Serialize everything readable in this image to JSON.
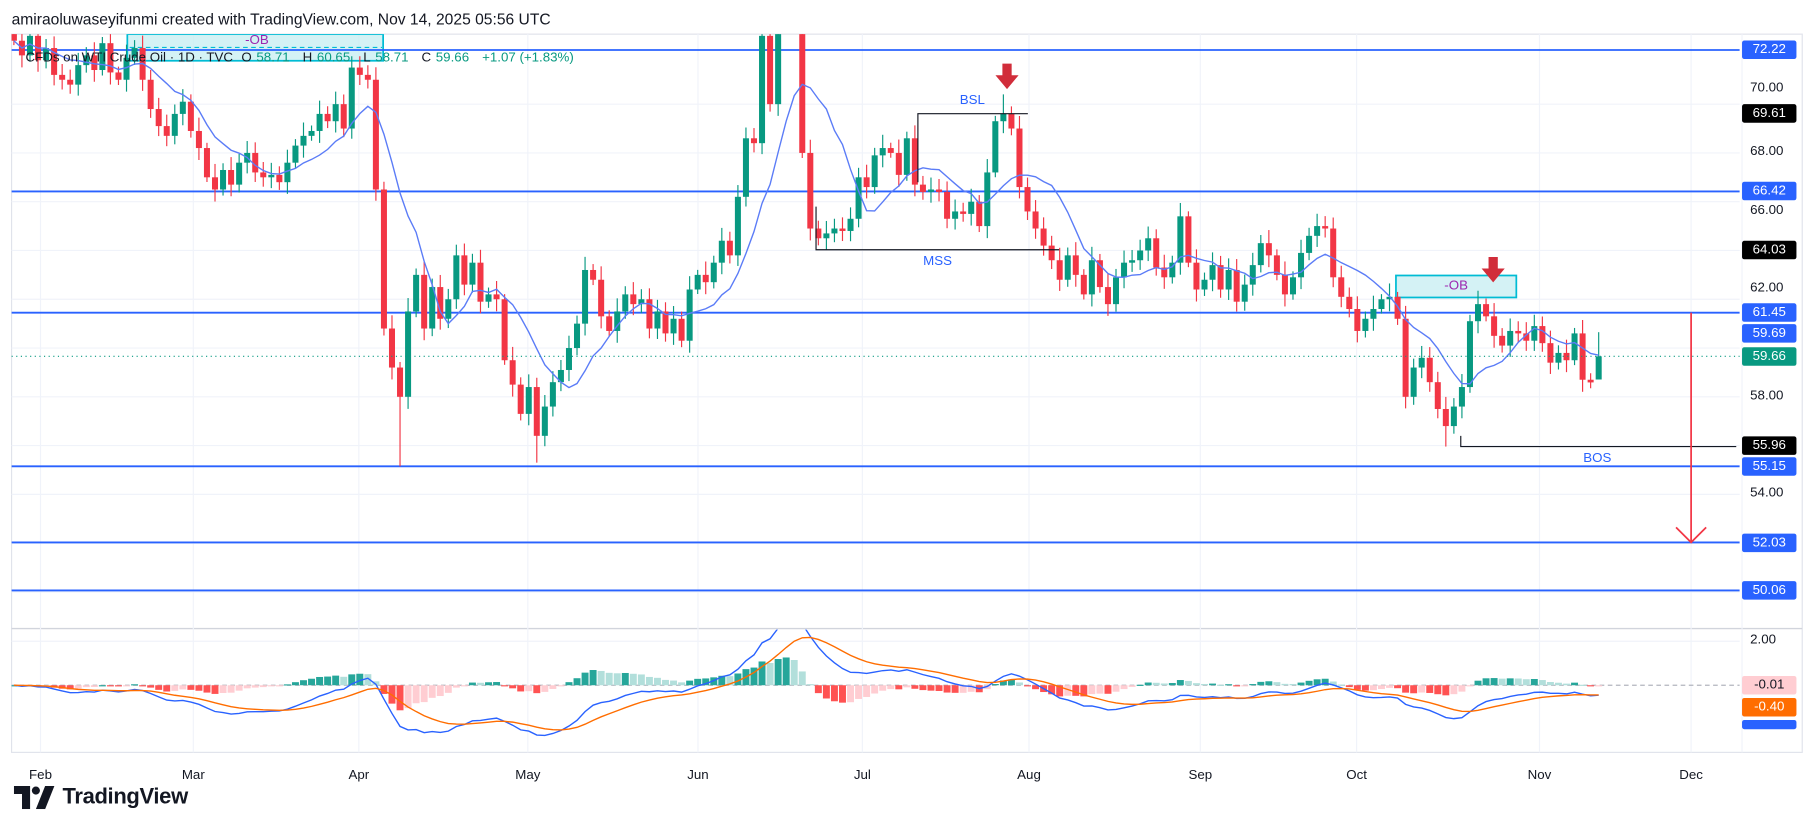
{
  "header": {
    "attribution": "amiraoluwaseyifunmi created with TradingView.com, Nov 14, 2025 05:56 UTC"
  },
  "legend": {
    "symbol": "CFDs on WTI Crude Oil · 1D · TVC",
    "o_label": "O",
    "o": "58.71",
    "h_label": "H",
    "h": "60.65",
    "l_label": "L",
    "l": "58.71",
    "c_label": "C",
    "c": "59.66",
    "change": "+1.07 (+1.83%)"
  },
  "price_axis": {
    "ticks": [
      "70.00",
      "68.00",
      "66.00",
      "62.00",
      "58.00",
      "54.00"
    ],
    "labels": [
      {
        "text": "72.22",
        "kind": "level"
      },
      {
        "text": "69.61",
        "kind": "marker"
      },
      {
        "text": "66.42",
        "kind": "level"
      },
      {
        "text": "64.03",
        "kind": "marker"
      },
      {
        "text": "61.45",
        "kind": "level"
      },
      {
        "text": "59.69",
        "kind": "sma"
      },
      {
        "text": "59.66",
        "kind": "last"
      },
      {
        "text": "55.96",
        "kind": "marker"
      },
      {
        "text": "55.15",
        "kind": "level"
      },
      {
        "text": "52.03",
        "kind": "level"
      },
      {
        "text": "50.06",
        "kind": "level"
      }
    ]
  },
  "macd_axis": {
    "ticks": [
      "2.00"
    ],
    "labels": [
      {
        "text": "-0.01",
        "kind": "histogram"
      },
      {
        "text": "-0.40",
        "kind": "signal"
      }
    ]
  },
  "time_axis": {
    "months": [
      "Feb",
      "Mar",
      "Apr",
      "May",
      "Jun",
      "Jul",
      "Aug",
      "Sep",
      "Oct",
      "Nov",
      "Dec"
    ]
  },
  "annotations": {
    "ob_top": "-OB",
    "ob_right": "-OB",
    "bsl": "BSL",
    "mss": "MSS",
    "bos": "BOS"
  },
  "logo": {
    "text": "TradingView"
  },
  "colors": {
    "up": "#089981",
    "down": "#f23645",
    "level": "#2962ff",
    "sma": "#5b7cf7",
    "macd": "#2962ff",
    "signal": "#ff6d00",
    "ob_fill": "#c9eff3",
    "ob_border": "#00bcd4",
    "ob_text": "#9c27b0",
    "arrow": "#f23645"
  },
  "chart_data": {
    "type": "candlestick",
    "symbol": "CFDs on WTI Crude Oil",
    "interval": "1D",
    "y_range": [
      49.0,
      72.9
    ],
    "levels": [
      72.22,
      66.42,
      61.45,
      55.15,
      52.03,
      50.06
    ],
    "markers": {
      "bsl": 69.61,
      "mss": 64.03,
      "bos": 55.96
    },
    "last_candle": {
      "open": 58.71,
      "high": 60.65,
      "low": 58.71,
      "close": 59.66
    },
    "indicators": [
      "SMA",
      "MACD"
    ],
    "closes": [
      72.6,
      72.0,
      72.8,
      71.8,
      72.3,
      71.2,
      71.0,
      70.8,
      71.6,
      72.0,
      71.4,
      72.5,
      71.3,
      71.0,
      71.9,
      72.3,
      71.0,
      69.8,
      69.1,
      68.7,
      69.6,
      70.1,
      68.9,
      68.2,
      67.0,
      66.5,
      67.3,
      66.7,
      67.6,
      68.0,
      67.2,
      67.0,
      67.1,
      66.8,
      67.6,
      68.3,
      68.7,
      68.9,
      69.6,
      69.3,
      70.0,
      69.0,
      71.5,
      71.2,
      71.0,
      66.5,
      60.8,
      59.2,
      58.0,
      61.5,
      63.0,
      60.8,
      62.5,
      61.2,
      62.0,
      63.8,
      62.6,
      63.5,
      61.9,
      62.2,
      62.0,
      59.5,
      58.5,
      57.3,
      58.4,
      56.4,
      57.6,
      58.6,
      59.1,
      60.0,
      61.0,
      63.2,
      62.8,
      61.3,
      60.7,
      61.5,
      62.2,
      61.8,
      62.0,
      60.8,
      61.5,
      60.6,
      61.2,
      60.3,
      62.4,
      63.0,
      62.7,
      63.5,
      64.4,
      63.8,
      66.2,
      68.6,
      68.4,
      72.8,
      70.0,
      74.5,
      75.0,
      73.8,
      68.0,
      64.9,
      64.5,
      64.7,
      64.9,
      64.8,
      65.3,
      67.0,
      66.6,
      67.9,
      68.2,
      68.0,
      67.1,
      68.6,
      66.7,
      66.4,
      66.5,
      66.4,
      65.3,
      65.6,
      65.5,
      66.0,
      65.0,
      67.2,
      69.3,
      69.6,
      69.0,
      66.6,
      65.6,
      64.9,
      64.2,
      63.6,
      62.8,
      63.8,
      63.0,
      62.2,
      63.6,
      62.5,
      61.8,
      62.9,
      63.5,
      63.6,
      64.0,
      64.5,
      63.3,
      62.9,
      63.5,
      65.4,
      63.5,
      62.4,
      62.8,
      63.4,
      62.4,
      63.2,
      61.9,
      62.6,
      63.4,
      64.3,
      63.8,
      63.0,
      62.2,
      62.9,
      63.9,
      64.6,
      65.0,
      64.9,
      62.9,
      62.1,
      61.6,
      60.7,
      61.2,
      61.6,
      62.0,
      62.1,
      61.2,
      58.0,
      59.2,
      59.6,
      58.6,
      57.5,
      56.8,
      57.6,
      58.4,
      61.1,
      61.8,
      61.3,
      60.5,
      60.1,
      60.7,
      60.6,
      60.3,
      60.9,
      60.2,
      59.4,
      59.8,
      59.5,
      60.6,
      58.7,
      58.59,
      59.66
    ],
    "extremes": [
      {
        "index": 48,
        "low": 55.15
      },
      {
        "index": 65,
        "low": 55.3
      },
      {
        "index": 123,
        "high": 70.4
      },
      {
        "index": 178,
        "low": 55.96
      },
      {
        "index": 172,
        "high": 62.3
      }
    ]
  }
}
